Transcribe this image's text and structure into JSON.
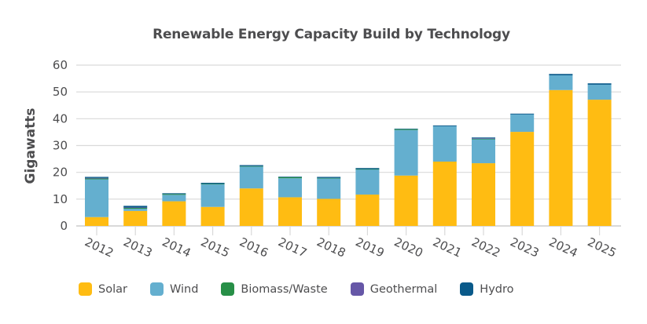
{
  "chart_data": {
    "type": "bar",
    "stacked": true,
    "title": "Renewable Energy Capacity Build by Technology",
    "xlabel": "",
    "ylabel": "Gigawatts",
    "ylim": [
      0,
      60
    ],
    "yticks": [
      0,
      10,
      20,
      30,
      40,
      50,
      60
    ],
    "grid": true,
    "legend_position": "bottom",
    "categories": [
      "2012",
      "2013",
      "2014",
      "2015",
      "2016",
      "2017",
      "2018",
      "2019",
      "2020",
      "2021",
      "2022",
      "2023",
      "2024",
      "2025"
    ],
    "series": [
      {
        "name": "Solar",
        "color": "#FFBC12",
        "values": [
          3.3,
          5.6,
          9.2,
          7.1,
          14.0,
          10.7,
          10.1,
          11.7,
          18.8,
          24.0,
          23.4,
          35.1,
          50.7,
          47.1
        ]
      },
      {
        "name": "Wind",
        "color": "#64AFCF",
        "values": [
          14.1,
          0.8,
          2.4,
          8.4,
          8.2,
          7.1,
          7.7,
          9.4,
          17.0,
          13.2,
          9.0,
          6.5,
          5.5,
          5.6
        ]
      },
      {
        "name": "Biomass/Waste",
        "color": "#278F47",
        "values": [
          0.3,
          0.4,
          0.3,
          0.2,
          0.1,
          0.4,
          0.1,
          0.1,
          0.3,
          0.0,
          0.1,
          0.0,
          0.0,
          0.0
        ]
      },
      {
        "name": "Geothermal",
        "color": "#6657A7",
        "values": [
          0.2,
          0.1,
          0.0,
          0.0,
          0.0,
          0.0,
          0.0,
          0.0,
          0.0,
          0.0,
          0.2,
          0.0,
          0.0,
          0.0
        ]
      },
      {
        "name": "Hydro",
        "color": "#0A5A8A",
        "values": [
          0.4,
          0.6,
          0.3,
          0.4,
          0.4,
          0.2,
          0.4,
          0.4,
          0.2,
          0.3,
          0.3,
          0.3,
          0.5,
          0.5
        ]
      }
    ]
  }
}
